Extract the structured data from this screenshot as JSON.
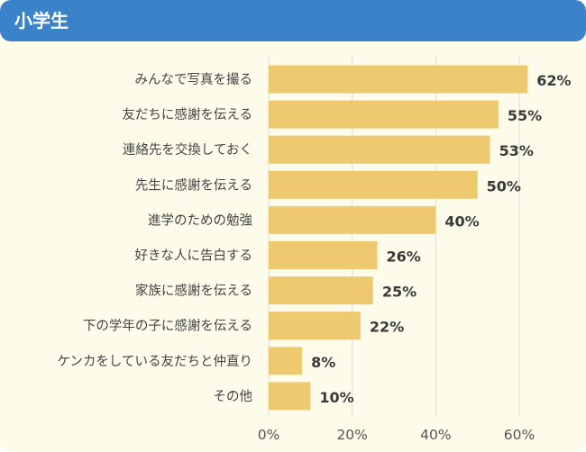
{
  "header": {
    "title": "小学生"
  },
  "colors": {
    "header_bg": "#3a83c9",
    "card_bg": "#fdfbea",
    "bar": "#efc96f",
    "grid": "#dcdcdc"
  },
  "chart_data": {
    "type": "bar",
    "orientation": "horizontal",
    "categories": [
      "みんなで写真を撮る",
      "友だちに感謝を伝える",
      "連絡先を交換しておく",
      "先生に感謝を伝える",
      "進学のための勉強",
      "好きな人に告白する",
      "家族に感謝を伝える",
      "下の学年の子に感謝を伝える",
      "ケンカをしている友だちと仲直り",
      "その他"
    ],
    "values": [
      62,
      55,
      53,
      50,
      40,
      26,
      25,
      22,
      8,
      10
    ],
    "value_labels": [
      "62%",
      "55%",
      "53%",
      "50%",
      "40%",
      "26%",
      "25%",
      "22%",
      "8%",
      "10%"
    ],
    "xlim": [
      0,
      60
    ],
    "xticks": [
      0,
      20,
      40,
      60
    ],
    "xtick_labels": [
      "0%",
      "20%",
      "40%",
      "60%"
    ],
    "grid": true,
    "legend": "none"
  }
}
